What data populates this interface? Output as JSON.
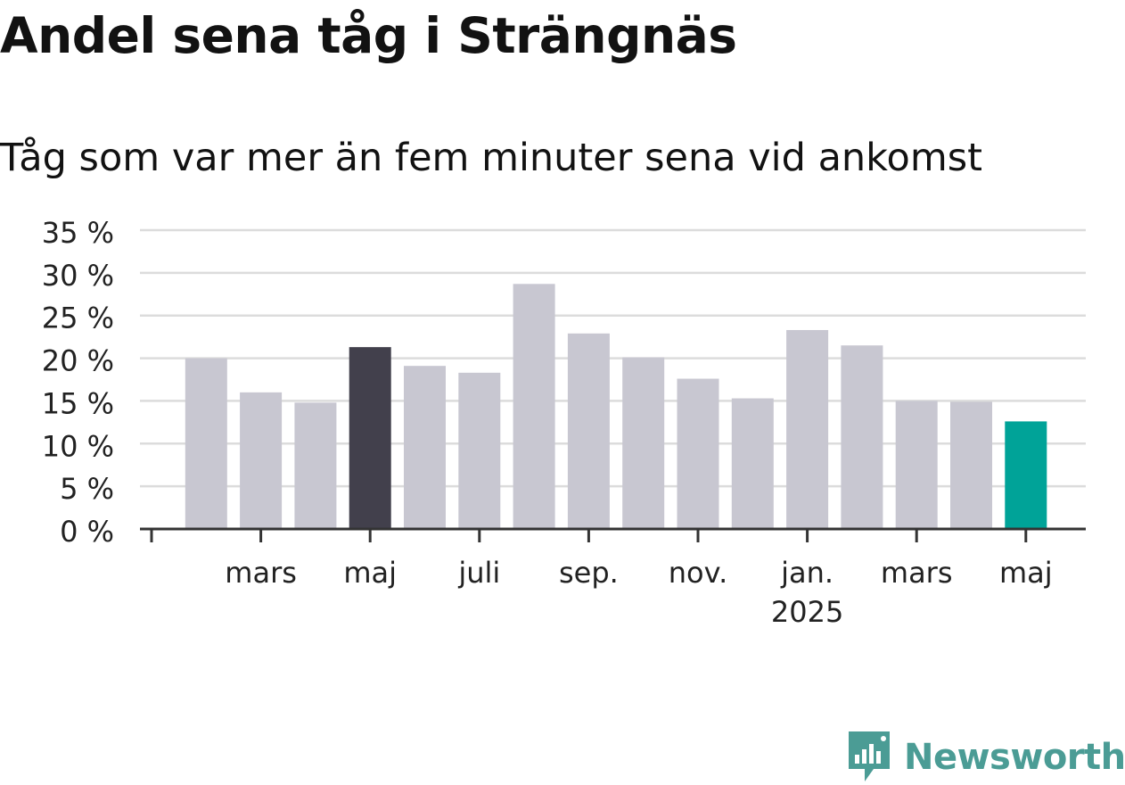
{
  "header": {
    "title": "Andel sena tåg i Strängnäs",
    "subtitle": "Tåg som var mer än fem minuter sena vid ankomst"
  },
  "logo": {
    "text": "Newsworthy",
    "icon": "newsworthy-bar-chart-icon",
    "color": "#4b9c95"
  },
  "colors": {
    "default_bar": "#c8c7d1",
    "highlight_bar": "#42404c",
    "latest_bar": "#00a398",
    "grid": "#dcdcdc",
    "axis": "#333333"
  },
  "chart_data": {
    "type": "bar",
    "title": "Andel sena tåg i Strängnäs",
    "subtitle": "Tåg som var mer än fem minuter sena vid ankomst",
    "categories": [
      "2024-02",
      "2024-03",
      "2024-04",
      "2024-05",
      "2024-06",
      "2024-07",
      "2024-08",
      "2024-09",
      "2024-10",
      "2024-11",
      "2024-12",
      "2025-01",
      "2025-02",
      "2025-03",
      "2025-04",
      "2025-05"
    ],
    "values": [
      20,
      16,
      14.8,
      21.3,
      19.1,
      18.3,
      28.7,
      22.9,
      20.1,
      17.6,
      15.3,
      23.3,
      21.5,
      15,
      14.9,
      12.6
    ],
    "highlight": {
      "2024-05": "highlight_bar",
      "2025-05": "latest_bar"
    },
    "ylim": [
      0,
      35
    ],
    "yticks": [
      {
        "value": 0,
        "label": "0 %"
      },
      {
        "value": 5,
        "label": "5 %"
      },
      {
        "value": 10,
        "label": "10 %"
      },
      {
        "value": 15,
        "label": "15 %"
      },
      {
        "value": 20,
        "label": "20 %"
      },
      {
        "value": 25,
        "label": "25 %"
      },
      {
        "value": 30,
        "label": "30 %"
      },
      {
        "value": 35,
        "label": "35 %"
      }
    ],
    "xticks": [
      {
        "at": "2024-01",
        "label": ""
      },
      {
        "at": "2024-03",
        "label": "mars"
      },
      {
        "at": "2024-05",
        "label": "maj"
      },
      {
        "at": "2024-07",
        "label": "juli"
      },
      {
        "at": "2024-09",
        "label": "sep."
      },
      {
        "at": "2024-11",
        "label": "nov."
      },
      {
        "at": "2025-01",
        "label": "jan.",
        "label2": "2025"
      },
      {
        "at": "2025-03",
        "label": "mars"
      },
      {
        "at": "2025-05",
        "label": "maj"
      }
    ],
    "grid": true,
    "legend": "none"
  }
}
